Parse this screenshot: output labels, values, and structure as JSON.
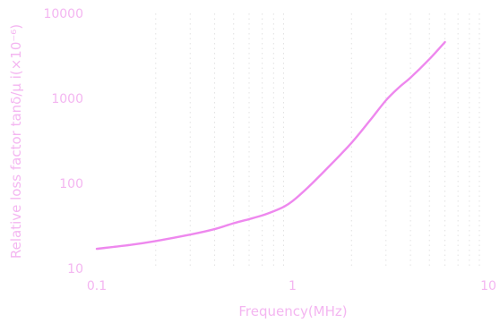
{
  "chart_data": {
    "type": "line",
    "title": "",
    "xlabel": "Frequency(MHz)",
    "ylabel": "Relative loss factor tanδ/μ i(×10⁻⁶)",
    "x_scale": "log",
    "y_scale": "log",
    "xlim": [
      0.1,
      10
    ],
    "ylim": [
      10,
      10000
    ],
    "x_ticks": [
      0.1,
      1,
      10
    ],
    "x_tick_labels": [
      "0.1",
      "1",
      "10"
    ],
    "y_ticks": [
      10,
      100,
      1000,
      10000
    ],
    "y_tick_labels": [
      "10",
      "100",
      "1000",
      "10000"
    ],
    "grid": "vertical dotted minor lines",
    "legend": "none",
    "colors": {
      "series": "#ee88ee",
      "text": "#f4b6f1",
      "grid": "#e2e2e2"
    },
    "series": [
      {
        "color": "#ee88ee",
        "x": [
          0.1,
          0.15,
          0.2,
          0.3,
          0.4,
          0.5,
          0.6,
          0.7,
          0.8,
          0.9,
          1.0,
          1.2,
          1.5,
          2.0,
          2.5,
          3.0,
          3.5,
          4.0,
          5.0,
          6.0
        ],
        "y": [
          17,
          19,
          21,
          25,
          29,
          34,
          38,
          42,
          47,
          53,
          62,
          90,
          150,
          300,
          560,
          950,
          1350,
          1750,
          2900,
          4600
        ]
      }
    ]
  }
}
